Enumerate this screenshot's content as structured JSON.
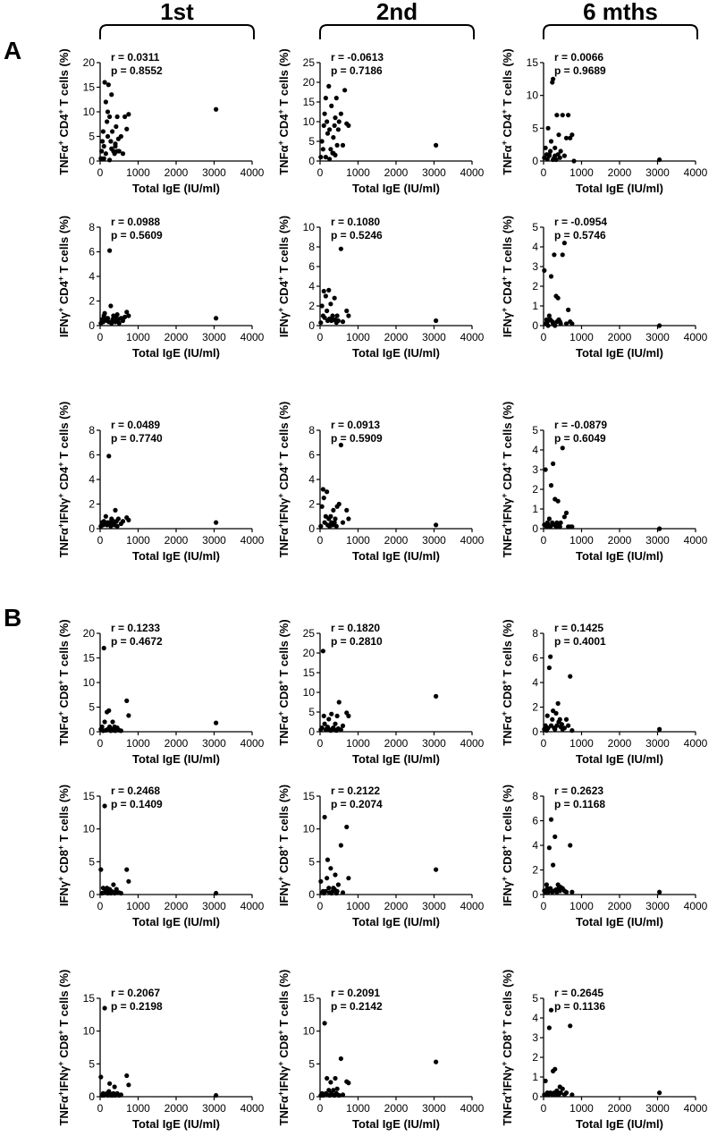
{
  "figure": {
    "columns": [
      "1st",
      "2nd",
      "6 mths"
    ],
    "panels": [
      "A",
      "B"
    ],
    "xlabel": "Total IgE (IU/ml)",
    "x_ticks": [
      "0",
      "1000",
      "2000",
      "3000",
      "4000"
    ],
    "point_color": "#000000"
  },
  "chart_data": [
    {
      "type": "scatter",
      "panel": "A",
      "column": "1st",
      "ylabel": "TNFα+ CD4+ T cells (%)",
      "r": "r = 0.0311",
      "p": "p = 0.8552",
      "xlim": [
        0,
        4000
      ],
      "ylim": [
        0,
        20
      ],
      "yticks": [
        0,
        5,
        10,
        15,
        20
      ],
      "x": [
        20,
        40,
        60,
        80,
        100,
        120,
        150,
        180,
        200,
        220,
        250,
        280,
        300,
        320,
        350,
        380,
        400,
        420,
        450,
        480,
        500,
        550,
        600,
        650,
        700,
        750,
        3050,
        100,
        150,
        200,
        250,
        300,
        400,
        450
      ],
      "y": [
        0.5,
        2,
        4,
        6,
        3,
        16,
        12,
        8,
        5,
        15.5,
        9,
        4,
        2.5,
        6,
        2,
        1.5,
        3,
        7,
        9,
        4.5,
        2,
        5,
        1.5,
        9,
        6.5,
        9.5,
        10.5,
        0.5,
        1.5,
        10,
        0.2,
        13.5,
        3.5,
        2
      ]
    },
    {
      "type": "scatter",
      "panel": "A",
      "column": "2nd",
      "ylabel": "TNFα+ CD4+ T cells (%)",
      "r": "r = -0.0613",
      "p": "p = 0.7186",
      "xlim": [
        0,
        4000
      ],
      "ylim": [
        0,
        25
      ],
      "yticks": [
        0,
        5,
        10,
        15,
        20,
        25
      ],
      "x": [
        20,
        50,
        80,
        100,
        120,
        150,
        180,
        200,
        230,
        250,
        280,
        300,
        330,
        350,
        380,
        400,
        430,
        450,
        480,
        500,
        550,
        600,
        650,
        700,
        750,
        3050,
        150,
        250,
        350,
        400
      ],
      "y": [
        1,
        5,
        3,
        9,
        12,
        16,
        10,
        7,
        19,
        8,
        3,
        14,
        2,
        6,
        9,
        1.5,
        16,
        4,
        8,
        10,
        12,
        4,
        18,
        9.5,
        9,
        4,
        1,
        0.5,
        2,
        11
      ]
    },
    {
      "type": "scatter",
      "panel": "A",
      "column": "6 mths",
      "ylabel": "TNFα+ CD4+ T cells (%)",
      "r": "r = 0.0066",
      "p": "p = 0.9689",
      "xlim": [
        0,
        4000
      ],
      "ylim": [
        0,
        15
      ],
      "yticks": [
        0,
        5,
        10,
        15
      ],
      "x": [
        20,
        50,
        80,
        100,
        120,
        150,
        180,
        200,
        230,
        250,
        280,
        300,
        330,
        350,
        380,
        400,
        430,
        450,
        500,
        550,
        600,
        650,
        700,
        750,
        800,
        3050,
        150,
        250,
        300
      ],
      "y": [
        0.5,
        2,
        1,
        0.3,
        5,
        0.8,
        1.5,
        3,
        12,
        12.5,
        0.5,
        2,
        0.2,
        7,
        1,
        4,
        0.5,
        1.5,
        7,
        0.8,
        3.5,
        7,
        3.5,
        4,
        0,
        0.2,
        1,
        0.2,
        0.8
      ]
    },
    {
      "type": "scatter",
      "panel": "A",
      "column": "1st",
      "ylabel": "IFNγ+ CD4+ T cells (%)",
      "r": "r = 0.0988",
      "p": "p = 0.5609",
      "xlim": [
        0,
        4000
      ],
      "ylim": [
        0,
        8
      ],
      "yticks": [
        0,
        2,
        4,
        6,
        8
      ],
      "x": [
        20,
        50,
        80,
        100,
        120,
        150,
        180,
        200,
        230,
        250,
        280,
        300,
        330,
        350,
        380,
        400,
        430,
        450,
        480,
        500,
        550,
        600,
        650,
        700,
        750,
        3050
      ],
      "y": [
        0.2,
        0.5,
        0.3,
        0.8,
        1,
        0.5,
        0.4,
        0.6,
        0.3,
        6.1,
        1.6,
        0.2,
        0.5,
        0.8,
        0.4,
        0.3,
        0.6,
        0.9,
        0.5,
        0.2,
        0.6,
        0.4,
        0.7,
        1.1,
        0.8,
        0.6
      ]
    },
    {
      "type": "scatter",
      "panel": "A",
      "column": "2nd",
      "ylabel": "IFNγ+ CD4+ T cells (%)",
      "r": "r = 0.1080",
      "p": "p = 0.5246",
      "xlim": [
        0,
        4000
      ],
      "ylim": [
        0,
        10
      ],
      "yticks": [
        0,
        2,
        4,
        6,
        8,
        10
      ],
      "x": [
        20,
        50,
        80,
        100,
        120,
        150,
        180,
        200,
        230,
        250,
        280,
        300,
        330,
        350,
        380,
        400,
        430,
        450,
        480,
        550,
        600,
        700,
        750,
        3050
      ],
      "y": [
        0.3,
        2,
        1,
        3.5,
        0.8,
        3,
        1.5,
        0.5,
        3.6,
        0.7,
        2.2,
        0.5,
        1,
        0.6,
        2.8,
        0.6,
        0.3,
        1,
        0.5,
        7.8,
        0.4,
        1.5,
        1,
        0.5
      ]
    },
    {
      "type": "scatter",
      "panel": "A",
      "column": "6 mths",
      "ylabel": "IFNγ+ CD4+ T cells (%)",
      "r": "r = -0.0954",
      "p": "p = 0.5746",
      "xlim": [
        0,
        4000
      ],
      "ylim": [
        0,
        5
      ],
      "yticks": [
        0,
        1,
        2,
        3,
        4,
        5
      ],
      "x": [
        20,
        50,
        80,
        100,
        120,
        150,
        180,
        200,
        230,
        250,
        280,
        300,
        330,
        350,
        380,
        400,
        430,
        450,
        500,
        550,
        600,
        650,
        700,
        750,
        3050
      ],
      "y": [
        2.8,
        0.1,
        0.3,
        0.2,
        0,
        0.5,
        0.3,
        2.5,
        0.2,
        0.1,
        3.6,
        0,
        1.5,
        0.2,
        1.4,
        0.3,
        0.2,
        0.1,
        3.6,
        4.2,
        0.1,
        0.8,
        0.2,
        0.1,
        0
      ]
    },
    {
      "type": "scatter",
      "panel": "A",
      "column": "1st",
      "ylabel": "TNFα+IFNγ+ CD4+ T cells (%)",
      "r": "r = 0.0489",
      "p": "p = 0.7740",
      "xlim": [
        0,
        4000
      ],
      "ylim": [
        0,
        8
      ],
      "yticks": [
        0,
        2,
        4,
        6,
        8
      ],
      "x": [
        20,
        50,
        80,
        100,
        120,
        150,
        180,
        200,
        230,
        250,
        280,
        300,
        330,
        350,
        380,
        400,
        430,
        450,
        480,
        550,
        600,
        700,
        750,
        3050
      ],
      "y": [
        0.2,
        0.5,
        0.3,
        0.6,
        0.4,
        1,
        0.3,
        0.5,
        5.9,
        0.5,
        0.2,
        0.8,
        0.4,
        0.6,
        0.3,
        1.5,
        0.6,
        0.2,
        0.8,
        0.4,
        0.6,
        0.9,
        0.7,
        0.5
      ]
    },
    {
      "type": "scatter",
      "panel": "A",
      "column": "2nd",
      "ylabel": "TNFα+IFNγ+ CD4+ T cells (%)",
      "r": "r = 0.0913",
      "p": "p = 0.5909",
      "xlim": [
        0,
        4000
      ],
      "ylim": [
        0,
        8
      ],
      "yticks": [
        0,
        2,
        4,
        6,
        8
      ],
      "x": [
        20,
        50,
        80,
        100,
        120,
        150,
        180,
        200,
        230,
        250,
        280,
        300,
        330,
        350,
        380,
        400,
        430,
        450,
        500,
        550,
        600,
        700,
        750,
        3050
      ],
      "y": [
        0.2,
        1.8,
        3.2,
        2.5,
        0.5,
        1,
        3,
        0.3,
        0.8,
        0.2,
        1,
        0.5,
        0.3,
        1.5,
        0.5,
        0.8,
        0.2,
        1.8,
        2,
        6.8,
        0.5,
        1.5,
        0.8,
        0.3
      ]
    },
    {
      "type": "scatter",
      "panel": "A",
      "column": "6 mths",
      "ylabel": "TNFα+IFNγ+ CD4+ T cells (%)",
      "r": "r = -0.0879",
      "p": "p = 0.6049",
      "xlim": [
        0,
        4000
      ],
      "ylim": [
        0,
        5
      ],
      "yticks": [
        0,
        1,
        2,
        3,
        4,
        5
      ],
      "x": [
        20,
        50,
        80,
        100,
        120,
        150,
        180,
        200,
        230,
        250,
        280,
        300,
        330,
        350,
        380,
        400,
        430,
        450,
        500,
        550,
        600,
        650,
        700,
        750,
        3050
      ],
      "y": [
        0.2,
        3,
        0.1,
        0.3,
        0.2,
        0.5,
        0.1,
        2.2,
        0.3,
        3.3,
        0.2,
        1.5,
        0.1,
        0.3,
        1.4,
        0.2,
        0.1,
        0.3,
        4.1,
        0.6,
        0.8,
        0.1,
        0.1,
        0.1,
        0
      ]
    },
    {
      "type": "scatter",
      "panel": "B",
      "column": "1st",
      "ylabel": "TNFα+ CD8+ T cells (%)",
      "r": "r = 0.1233",
      "p": "p = 0.4672",
      "xlim": [
        0,
        4000
      ],
      "ylim": [
        0,
        20
      ],
      "yticks": [
        0,
        5,
        10,
        15,
        20
      ],
      "x": [
        20,
        50,
        80,
        100,
        120,
        150,
        180,
        200,
        230,
        250,
        280,
        300,
        330,
        350,
        380,
        400,
        430,
        450,
        500,
        550,
        700,
        750,
        3050
      ],
      "y": [
        0.5,
        1,
        0.2,
        17,
        2,
        0.3,
        4,
        0.5,
        4.3,
        1,
        0.2,
        0.5,
        2,
        0.3,
        1,
        0.2,
        0.4,
        0.8,
        0.3,
        0.2,
        6.3,
        3.3,
        1.8
      ]
    },
    {
      "type": "scatter",
      "panel": "B",
      "column": "2nd",
      "ylabel": "TNFα+ CD8+ T cells (%)",
      "r": "r = 0.1820",
      "p": "p = 0.2810",
      "xlim": [
        0,
        4000
      ],
      "ylim": [
        0,
        25
      ],
      "yticks": [
        0,
        5,
        10,
        15,
        20,
        25
      ],
      "x": [
        20,
        50,
        80,
        100,
        120,
        150,
        180,
        200,
        230,
        250,
        280,
        300,
        330,
        350,
        380,
        400,
        430,
        450,
        480,
        500,
        550,
        600,
        700,
        750,
        3050
      ],
      "y": [
        0.5,
        1,
        20.5,
        4,
        2,
        0.5,
        0.8,
        1.2,
        3.2,
        0.5,
        0.3,
        4.5,
        0.8,
        1,
        0.5,
        2,
        0.3,
        4,
        0.8,
        7.5,
        0.5,
        1.5,
        4.8,
        4,
        9
      ]
    },
    {
      "type": "scatter",
      "panel": "B",
      "column": "6 mths",
      "ylabel": "TNFα+ CD8+ T cells (%)",
      "r": "r = 0.1425",
      "p": "p = 0.4001",
      "xlim": [
        0,
        4000
      ],
      "ylim": [
        0,
        8
      ],
      "yticks": [
        0,
        2,
        4,
        6,
        8
      ],
      "x": [
        20,
        50,
        80,
        100,
        120,
        150,
        180,
        200,
        230,
        250,
        280,
        300,
        330,
        350,
        380,
        400,
        430,
        450,
        480,
        500,
        550,
        600,
        650,
        700,
        750,
        3050
      ],
      "y": [
        0.2,
        0.5,
        0.1,
        1.3,
        0.3,
        5.2,
        6.1,
        0.5,
        1,
        1.7,
        0.3,
        0.2,
        1.5,
        0.5,
        2.3,
        0.8,
        1,
        0.4,
        0.6,
        0.2,
        0.3,
        1,
        0.5,
        4.5,
        0.1,
        0.2
      ]
    },
    {
      "type": "scatter",
      "panel": "B",
      "column": "1st",
      "ylabel": "IFNγ+ CD8+ T cells (%)",
      "r": "r = 0.2468",
      "p": "p = 0.1409",
      "xlim": [
        0,
        4000
      ],
      "ylim": [
        0,
        15
      ],
      "yticks": [
        0,
        5,
        10,
        15
      ],
      "x": [
        20,
        50,
        80,
        100,
        120,
        150,
        180,
        200,
        230,
        250,
        280,
        300,
        330,
        350,
        380,
        400,
        430,
        450,
        500,
        550,
        700,
        750,
        3050
      ],
      "y": [
        3.8,
        0.2,
        1,
        0.3,
        13.5,
        0.5,
        1,
        0.2,
        0.4,
        0.8,
        0.2,
        0.5,
        0.3,
        1.5,
        0.2,
        0.4,
        0.8,
        0.3,
        0.3,
        0.2,
        3.8,
        2,
        0.2
      ]
    },
    {
      "type": "scatter",
      "panel": "B",
      "column": "2nd",
      "ylabel": "IFNγ+ CD8+ T cells (%)",
      "r": "r = 0.2122",
      "p": "p = 0.2074",
      "xlim": [
        0,
        4000
      ],
      "ylim": [
        0,
        15
      ],
      "yticks": [
        0,
        5,
        10,
        15
      ],
      "x": [
        20,
        50,
        80,
        100,
        120,
        150,
        180,
        200,
        230,
        250,
        280,
        300,
        330,
        350,
        380,
        400,
        430,
        450,
        480,
        550,
        600,
        700,
        750,
        3050
      ],
      "y": [
        2,
        0.3,
        0.5,
        0.2,
        11.8,
        0.5,
        2.5,
        5.3,
        1,
        0.3,
        4,
        0.2,
        0.5,
        1,
        0.8,
        3,
        0.2,
        0.5,
        1.5,
        7.5,
        0.3,
        10.3,
        2.5,
        3.8
      ]
    },
    {
      "type": "scatter",
      "panel": "B",
      "column": "6 mths",
      "ylabel": "IFNγ+ CD8+ T cells (%)",
      "r": "r = 0.2623",
      "p": "p = 0.1168",
      "xlim": [
        0,
        4000
      ],
      "ylim": [
        0,
        8
      ],
      "yticks": [
        0,
        2,
        4,
        6,
        8
      ],
      "x": [
        20,
        50,
        80,
        100,
        120,
        150,
        180,
        200,
        230,
        250,
        280,
        300,
        330,
        350,
        380,
        400,
        430,
        450,
        500,
        550,
        600,
        700,
        750,
        3050
      ],
      "y": [
        0.3,
        0.2,
        0.8,
        0.5,
        0.2,
        3.8,
        0.5,
        6.1,
        0.2,
        2.4,
        0.3,
        4.7,
        0.4,
        0.2,
        0.8,
        0.5,
        0.3,
        0.6,
        0.5,
        0.3,
        0.2,
        4,
        0.2,
        0.2
      ]
    },
    {
      "type": "scatter",
      "panel": "B",
      "column": "1st",
      "ylabel": "TNFα+IFNγ+ CD8+ T cells (%)",
      "r": "r = 0.2067",
      "p": "p = 0.2198",
      "xlim": [
        0,
        4000
      ],
      "ylim": [
        0,
        15
      ],
      "yticks": [
        0,
        5,
        10,
        15
      ],
      "x": [
        20,
        50,
        80,
        100,
        120,
        150,
        180,
        200,
        230,
        250,
        280,
        300,
        330,
        350,
        380,
        400,
        430,
        450,
        500,
        550,
        700,
        750,
        3050
      ],
      "y": [
        3,
        0.2,
        0.5,
        0.2,
        13.5,
        0.3,
        0.5,
        0.2,
        0.8,
        2,
        0.2,
        0.4,
        0.2,
        0.5,
        1.5,
        0.2,
        0.3,
        0.5,
        0.2,
        0.3,
        3.2,
        1.8,
        0.2
      ]
    },
    {
      "type": "scatter",
      "panel": "B",
      "column": "2nd",
      "ylabel": "TNFα+IFNγ+ CD8+ T cells (%)",
      "r": "r = 0.2091",
      "p": "p = 0.2142",
      "xlim": [
        0,
        4000
      ],
      "ylim": [
        0,
        15
      ],
      "yticks": [
        0,
        5,
        10,
        15
      ],
      "x": [
        20,
        50,
        80,
        100,
        120,
        150,
        180,
        200,
        230,
        250,
        280,
        300,
        330,
        350,
        380,
        400,
        430,
        450,
        500,
        550,
        600,
        700,
        750,
        3050
      ],
      "y": [
        0.2,
        0.5,
        0.2,
        0.3,
        11.2,
        0.5,
        2.8,
        0.3,
        1,
        0.2,
        2.2,
        0.5,
        0.3,
        1,
        0.2,
        2.8,
        0.5,
        1.2,
        0.2,
        5.8,
        0.3,
        2.3,
        2.1,
        5.3
      ]
    },
    {
      "type": "scatter",
      "panel": "B",
      "column": "6 mths",
      "ylabel": "TNFα+IFNγ+ CD8+ T cells (%)",
      "r": "r = 0.2645",
      "p": "p = 0.1136",
      "xlim": [
        0,
        4000
      ],
      "ylim": [
        0,
        5
      ],
      "yticks": [
        0,
        1,
        2,
        3,
        4,
        5
      ],
      "x": [
        20,
        50,
        80,
        100,
        120,
        150,
        180,
        200,
        230,
        250,
        280,
        300,
        330,
        350,
        380,
        400,
        430,
        450,
        500,
        550,
        600,
        700,
        750,
        3050
      ],
      "y": [
        0.1,
        0.8,
        0.1,
        0.2,
        0.1,
        3.5,
        0.2,
        4.4,
        0.1,
        1.3,
        0.2,
        1.4,
        0.1,
        0.3,
        0.2,
        0.1,
        0.5,
        0.2,
        0.4,
        0.1,
        0.2,
        3.6,
        0.1,
        0.2
      ]
    }
  ]
}
